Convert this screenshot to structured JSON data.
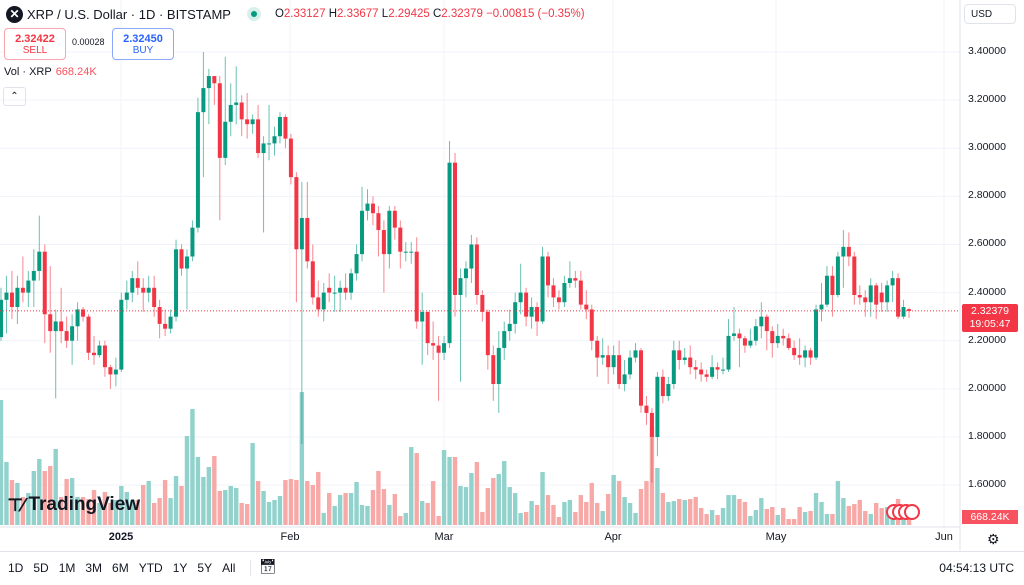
{
  "header": {
    "title": "XRP / U.S. Dollar · 1D · BITSTAMP",
    "logo_letter": "✕",
    "ohlc": {
      "o_label": "O",
      "o": "2.33127",
      "h_label": "H",
      "h": "2.33677",
      "l_label": "L",
      "l": "2.29425",
      "c_label": "C",
      "c": "2.32379",
      "change": "−0.00815 (−0.35%)"
    }
  },
  "trade": {
    "sell_price": "2.32422",
    "sell_label": "SELL",
    "spread": "0.00028",
    "buy_price": "2.32450",
    "buy_label": "BUY"
  },
  "volume_legend": {
    "label": "Vol · XRP",
    "value": "668.24K"
  },
  "currency": "USD",
  "price_tag": {
    "price": "2.32379",
    "countdown": "19:05:47"
  },
  "volume_tag": "668.24K",
  "bottom": {
    "ranges": [
      "1D",
      "5D",
      "1M",
      "3M",
      "6M",
      "YTD",
      "1Y",
      "5Y",
      "All"
    ],
    "clock": "04:54:13 UTC"
  },
  "branding": "TradingView",
  "colors": {
    "up": "#089981",
    "down": "#f23645",
    "vol_up": "#92d2cc",
    "vol_down": "#f7a9a7",
    "last_price": "#f23645"
  },
  "chart_data": {
    "type": "candlestick",
    "symbol": "XRP / U.S. Dollar",
    "interval": "1D",
    "exchange": "BITSTAMP",
    "ylim": [
      1.55,
      3.45
    ],
    "y_ticks": [
      "3.40000",
      "3.20000",
      "3.00000",
      "2.80000",
      "2.60000",
      "2.40000",
      "2.20000",
      "2.00000",
      "1.80000",
      "1.60000"
    ],
    "x_ticks": [
      {
        "label": "2025",
        "bold": true
      },
      {
        "label": "Feb"
      },
      {
        "label": "Mar"
      },
      {
        "label": "Apr"
      },
      {
        "label": "May"
      },
      {
        "label": "Jun"
      }
    ],
    "last_price": 2.32379,
    "columns": [
      "open",
      "high",
      "low",
      "close",
      "volume_k"
    ],
    "candles": [
      [
        2.215,
        2.42,
        2.2,
        2.37,
        10440
      ],
      [
        2.37,
        2.47,
        2.23,
        2.4,
        5260
      ],
      [
        2.4,
        2.49,
        2.29,
        2.34,
        3760
      ],
      [
        2.34,
        2.47,
        2.27,
        2.42,
        3510
      ],
      [
        2.42,
        2.55,
        2.36,
        2.4,
        2340
      ],
      [
        2.4,
        2.49,
        2.34,
        2.45,
        2670
      ],
      [
        2.45,
        2.58,
        2.34,
        2.49,
        4510
      ],
      [
        2.49,
        2.72,
        2.45,
        2.57,
        5510
      ],
      [
        2.57,
        2.6,
        2.19,
        2.31,
        4510
      ],
      [
        2.31,
        2.51,
        2.15,
        2.24,
        4930
      ],
      [
        2.24,
        2.33,
        1.96,
        2.28,
        6350
      ],
      [
        2.28,
        2.42,
        2.19,
        2.24,
        2340
      ],
      [
        2.24,
        2.3,
        2.17,
        2.2,
        3840
      ],
      [
        2.2,
        2.31,
        2.1,
        2.26,
        3920
      ],
      [
        2.26,
        2.36,
        2.2,
        2.33,
        2340
      ],
      [
        2.33,
        2.34,
        2.28,
        2.3,
        2340
      ],
      [
        2.3,
        2.31,
        2.12,
        2.15,
        2170
      ],
      [
        2.15,
        2.22,
        2.1,
        2.14,
        2920
      ],
      [
        2.14,
        2.2,
        2.13,
        2.18,
        1840
      ],
      [
        2.18,
        2.2,
        2.05,
        2.09,
        2760
      ],
      [
        2.09,
        2.1,
        2.0,
        2.06,
        1840
      ],
      [
        2.06,
        2.13,
        2.01,
        2.08,
        2090
      ],
      [
        2.08,
        2.4,
        2.07,
        2.37,
        3260
      ],
      [
        2.37,
        2.45,
        2.33,
        2.4,
        2760
      ],
      [
        2.4,
        2.49,
        2.36,
        2.46,
        2090
      ],
      [
        2.46,
        2.53,
        2.39,
        2.42,
        2090
      ],
      [
        2.42,
        2.46,
        2.32,
        2.4,
        3340
      ],
      [
        2.4,
        2.47,
        2.36,
        2.42,
        3670
      ],
      [
        2.42,
        2.47,
        2.3,
        2.34,
        1840
      ],
      [
        2.34,
        2.37,
        2.21,
        2.27,
        2250
      ],
      [
        2.27,
        2.33,
        2.22,
        2.25,
        3760
      ],
      [
        2.25,
        2.33,
        2.23,
        2.3,
        2250
      ],
      [
        2.3,
        2.62,
        2.28,
        2.58,
        4090
      ],
      [
        2.58,
        2.6,
        2.47,
        2.5,
        3260
      ],
      [
        2.5,
        2.58,
        2.33,
        2.55,
        7430
      ],
      [
        2.55,
        2.7,
        2.53,
        2.67,
        9690
      ],
      [
        2.67,
        3.21,
        2.65,
        3.15,
        5680
      ],
      [
        3.15,
        3.4,
        2.88,
        3.25,
        4010
      ],
      [
        3.25,
        3.33,
        3.1,
        3.3,
        4840
      ],
      [
        3.3,
        3.3,
        3.18,
        3.27,
        5760
      ],
      [
        3.27,
        3.3,
        2.7,
        2.96,
        2840
      ],
      [
        2.96,
        3.38,
        2.93,
        3.11,
        2920
      ],
      [
        3.11,
        3.27,
        3.05,
        3.18,
        3260
      ],
      [
        3.18,
        3.34,
        3.1,
        3.19,
        3090
      ],
      [
        3.19,
        3.22,
        3.05,
        3.12,
        1840
      ],
      [
        3.12,
        3.23,
        3.04,
        3.1,
        1750
      ],
      [
        3.1,
        3.14,
        3.06,
        3.12,
        6850
      ],
      [
        3.12,
        3.18,
        2.96,
        2.98,
        3670
      ],
      [
        2.98,
        3.05,
        2.65,
        3.02,
        2840
      ],
      [
        3.02,
        3.18,
        2.95,
        3.02,
        1920
      ],
      [
        3.02,
        3.09,
        2.97,
        3.05,
        2090
      ],
      [
        3.05,
        3.15,
        3.02,
        3.13,
        2420
      ],
      [
        3.13,
        3.14,
        3.0,
        3.04,
        3760
      ],
      [
        3.04,
        3.06,
        2.85,
        2.88,
        3840
      ],
      [
        2.88,
        2.9,
        2.36,
        2.58,
        3760
      ],
      [
        2.58,
        2.86,
        1.77,
        2.71,
        11100
      ],
      [
        2.71,
        2.86,
        2.5,
        2.53,
        3670
      ],
      [
        2.53,
        2.6,
        2.35,
        2.38,
        3340
      ],
      [
        2.38,
        2.45,
        2.3,
        2.33,
        4430
      ],
      [
        2.33,
        2.44,
        2.28,
        2.4,
        1000
      ],
      [
        2.42,
        2.48,
        2.36,
        2.4,
        2670
      ],
      [
        2.4,
        2.47,
        2.32,
        2.4,
        1590
      ],
      [
        2.4,
        2.45,
        2.32,
        2.42,
        2500
      ],
      [
        2.42,
        2.48,
        2.37,
        2.4,
        2670
      ],
      [
        2.4,
        2.5,
        2.37,
        2.48,
        2670
      ],
      [
        2.48,
        2.6,
        2.45,
        2.56,
        3590
      ],
      [
        2.56,
        2.84,
        2.53,
        2.74,
        1670
      ],
      [
        2.74,
        2.83,
        2.7,
        2.77,
        1590
      ],
      [
        2.77,
        2.8,
        2.68,
        2.73,
        2920
      ],
      [
        2.73,
        2.76,
        2.55,
        2.66,
        4510
      ],
      [
        2.66,
        2.7,
        2.4,
        2.56,
        3010
      ],
      [
        2.56,
        2.76,
        2.5,
        2.74,
        1670
      ],
      [
        2.74,
        2.76,
        2.62,
        2.67,
        2590
      ],
      [
        2.67,
        2.7,
        2.5,
        2.57,
        750
      ],
      [
        2.57,
        2.61,
        2.53,
        2.57,
        1000
      ],
      [
        2.57,
        2.61,
        2.52,
        2.57,
        6510
      ],
      [
        2.57,
        2.63,
        2.25,
        2.28,
        6010
      ],
      [
        2.28,
        2.4,
        2.1,
        2.32,
        2000
      ],
      [
        2.32,
        2.32,
        2.14,
        2.19,
        1840
      ],
      [
        2.19,
        2.28,
        2.12,
        2.18,
        3670
      ],
      [
        2.18,
        2.22,
        1.95,
        2.15,
        750
      ],
      [
        2.15,
        2.22,
        2.12,
        2.19,
        6260
      ],
      [
        2.19,
        3.03,
        2.17,
        2.94,
        5680
      ],
      [
        2.94,
        2.98,
        2.3,
        2.39,
        5680
      ],
      [
        2.39,
        2.5,
        2.03,
        2.46,
        3260
      ],
      [
        2.46,
        2.53,
        2.38,
        2.5,
        3170
      ],
      [
        2.5,
        2.64,
        2.44,
        2.6,
        4340
      ],
      [
        2.6,
        2.63,
        2.35,
        2.39,
        5260
      ],
      [
        2.39,
        2.41,
        2.28,
        2.32,
        1090
      ],
      [
        2.32,
        2.33,
        2.08,
        2.14,
        3090
      ],
      [
        2.14,
        2.18,
        1.95,
        2.02,
        3920
      ],
      [
        2.02,
        2.24,
        1.9,
        2.17,
        4260
      ],
      [
        2.17,
        2.28,
        2.12,
        2.24,
        5340
      ],
      [
        2.24,
        2.33,
        2.2,
        2.27,
        3170
      ],
      [
        2.27,
        2.4,
        2.23,
        2.36,
        2670
      ],
      [
        2.36,
        2.52,
        2.31,
        2.4,
        1000
      ],
      [
        2.4,
        2.42,
        2.26,
        2.3,
        1090
      ],
      [
        2.3,
        2.38,
        2.25,
        2.34,
        2000
      ],
      [
        2.34,
        2.36,
        2.22,
        2.28,
        1670
      ],
      [
        2.28,
        2.59,
        2.27,
        2.55,
        4430
      ],
      [
        2.55,
        2.57,
        2.38,
        2.43,
        2500
      ],
      [
        2.43,
        2.46,
        2.34,
        2.38,
        1670
      ],
      [
        2.38,
        2.41,
        2.33,
        2.36,
        670
      ],
      [
        2.36,
        2.47,
        2.34,
        2.44,
        1920
      ],
      [
        2.44,
        2.53,
        2.42,
        2.46,
        2090
      ],
      [
        2.46,
        2.49,
        2.42,
        2.45,
        1090
      ],
      [
        2.45,
        2.49,
        2.33,
        2.35,
        2500
      ],
      [
        2.35,
        2.41,
        2.29,
        2.33,
        1920
      ],
      [
        2.33,
        2.35,
        2.16,
        2.2,
        3510
      ],
      [
        2.2,
        2.22,
        2.05,
        2.13,
        1840
      ],
      [
        2.13,
        2.21,
        2.1,
        2.14,
        1170
      ],
      [
        2.14,
        2.18,
        2.02,
        2.09,
        2590
      ],
      [
        2.09,
        2.18,
        2.06,
        2.14,
        4180
      ],
      [
        2.14,
        2.2,
        2.0,
        2.02,
        3670
      ],
      [
        2.02,
        2.12,
        1.99,
        2.06,
        2340
      ],
      [
        2.06,
        2.16,
        2.04,
        2.13,
        1840
      ],
      [
        2.13,
        2.19,
        2.11,
        2.16,
        1000
      ],
      [
        2.16,
        2.17,
        1.9,
        1.93,
        3010
      ],
      [
        1.93,
        1.97,
        1.85,
        1.9,
        3670
      ],
      [
        1.9,
        1.92,
        1.61,
        1.8,
        8180
      ],
      [
        1.8,
        2.07,
        1.72,
        2.05,
        4760
      ],
      [
        2.05,
        2.08,
        1.94,
        1.97,
        2670
      ],
      [
        1.97,
        2.05,
        1.95,
        2.02,
        1920
      ],
      [
        2.02,
        2.2,
        2.0,
        2.16,
        2000
      ],
      [
        2.16,
        2.2,
        2.08,
        2.12,
        2170
      ],
      [
        2.12,
        2.17,
        2.1,
        2.13,
        2090
      ],
      [
        2.13,
        2.18,
        2.06,
        2.09,
        2170
      ],
      [
        2.09,
        2.12,
        2.04,
        2.08,
        2340
      ],
      [
        2.08,
        2.11,
        2.03,
        2.06,
        1420
      ],
      [
        2.06,
        2.08,
        2.03,
        2.05,
        920
      ],
      [
        2.05,
        2.14,
        2.04,
        2.09,
        1250
      ],
      [
        2.09,
        2.11,
        2.04,
        2.08,
        835
      ],
      [
        2.08,
        2.13,
        2.06,
        2.08,
        1420
      ],
      [
        2.08,
        2.29,
        2.07,
        2.22,
        2500
      ],
      [
        2.22,
        2.34,
        2.2,
        2.23,
        2500
      ],
      [
        2.23,
        2.25,
        2.09,
        2.21,
        2170
      ],
      [
        2.21,
        2.22,
        2.15,
        2.18,
        1920
      ],
      [
        2.18,
        2.25,
        2.17,
        2.2,
        750
      ],
      [
        2.2,
        2.29,
        2.18,
        2.26,
        1250
      ],
      [
        2.26,
        2.36,
        2.21,
        2.3,
        2250
      ],
      [
        2.3,
        2.31,
        2.16,
        2.24,
        1340
      ],
      [
        2.24,
        2.26,
        2.13,
        2.19,
        1500
      ],
      [
        2.19,
        2.27,
        2.17,
        2.22,
        835
      ],
      [
        2.22,
        2.25,
        2.18,
        2.21,
        1420
      ],
      [
        2.21,
        2.23,
        2.16,
        2.17,
        500
      ],
      [
        2.17,
        2.2,
        2.12,
        2.14,
        500
      ],
      [
        2.14,
        2.21,
        2.1,
        2.13,
        1500
      ],
      [
        2.13,
        2.18,
        2.09,
        2.16,
        1090
      ],
      [
        2.16,
        2.17,
        2.1,
        2.13,
        1170
      ],
      [
        2.13,
        2.35,
        2.12,
        2.33,
        2670
      ],
      [
        2.33,
        2.44,
        2.28,
        2.35,
        1920
      ],
      [
        2.35,
        2.51,
        2.34,
        2.47,
        920
      ],
      [
        2.47,
        2.51,
        2.3,
        2.39,
        920
      ],
      [
        2.39,
        2.57,
        2.38,
        2.55,
        3670
      ],
      [
        2.55,
        2.66,
        2.42,
        2.59,
        2250
      ],
      [
        2.59,
        2.65,
        2.51,
        2.55,
        1590
      ],
      [
        2.55,
        2.57,
        2.35,
        2.39,
        1750
      ],
      [
        2.39,
        2.43,
        2.35,
        2.38,
        2090
      ],
      [
        2.38,
        2.41,
        2.3,
        2.36,
        1170
      ],
      [
        2.36,
        2.46,
        2.3,
        2.43,
        920
      ],
      [
        2.43,
        2.44,
        2.29,
        2.35,
        1840
      ],
      [
        2.4,
        2.44,
        2.32,
        2.36,
        1420
      ],
      [
        2.36,
        2.45,
        2.32,
        2.43,
        1500
      ],
      [
        2.43,
        2.49,
        2.36,
        2.46,
        1670
      ],
      [
        2.46,
        2.48,
        2.29,
        2.3,
        2170
      ],
      [
        2.3,
        2.37,
        2.29,
        2.34,
        1000
      ],
      [
        2.33127,
        2.33677,
        2.29425,
        2.32379,
        668.24
      ]
    ]
  }
}
